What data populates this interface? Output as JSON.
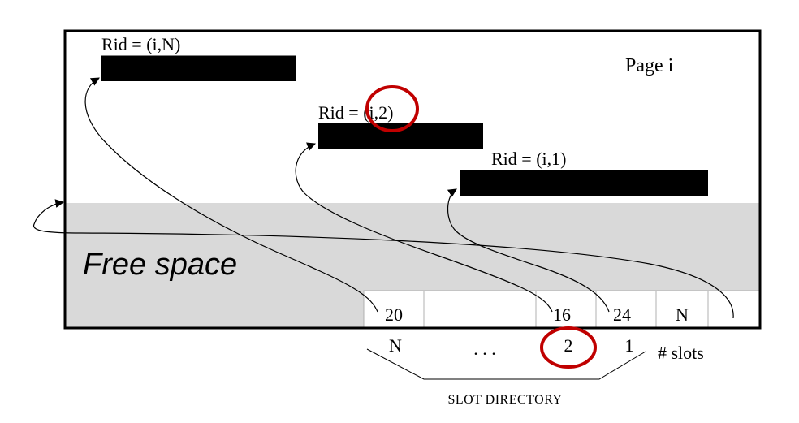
{
  "page_label": "Page i",
  "records": [
    {
      "id": "rid-n",
      "label": "Rid = (i,N)"
    },
    {
      "id": "rid-2",
      "label": "Rid = (i,2)"
    },
    {
      "id": "rid-1",
      "label": "Rid = (i,1)"
    }
  ],
  "free_space_label": "Free space",
  "slot_cells": [
    "20",
    "",
    "16",
    "24",
    "N",
    ""
  ],
  "slot_indices": [
    "N",
    ". . .",
    "2",
    "1"
  ],
  "slots_count_label": "# slots",
  "slot_directory_label": "SLOT DIRECTORY",
  "colors": {
    "free_space": "#d9d9d9",
    "record_fill": "#000000",
    "highlight_circle": "#c00000"
  }
}
